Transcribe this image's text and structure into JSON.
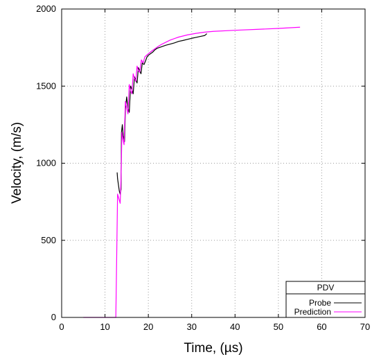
{
  "chart_data": {
    "type": "line",
    "xlabel": "Time, (µs)",
    "ylabel": "Velocity, (m/s)",
    "xlim": [
      0,
      70
    ],
    "ylim": [
      0,
      2000
    ],
    "xticks": [
      0,
      10,
      20,
      30,
      40,
      50,
      60,
      70
    ],
    "yticks": [
      0,
      500,
      1000,
      1500,
      2000
    ],
    "grid": true,
    "legend": {
      "title": "PDV",
      "placement": "bottom-right"
    },
    "colors": {
      "probe": "#000000",
      "prediction": "#ff00ff"
    },
    "series": [
      {
        "name": "Probe",
        "color": "#000000",
        "x": [
          12.8,
          12.9,
          13.1,
          13.3,
          13.5,
          13.7,
          13.8,
          14.0,
          14.2,
          14.5,
          14.7,
          15.0,
          15.3,
          15.6,
          15.9,
          16.2,
          16.5,
          16.8,
          17.1,
          17.4,
          17.7,
          18.0,
          18.3,
          18.6,
          19.0,
          19.3,
          19.7,
          20.0,
          20.5,
          21.0,
          21.5,
          22.0,
          23.0,
          24.0,
          25.0,
          26.0,
          27.0,
          28.0,
          29.0,
          30.0,
          31.0,
          32.0,
          33.0,
          33.5
        ],
        "y": [
          940,
          900,
          860,
          820,
          800,
          830,
          1200,
          1250,
          1180,
          1140,
          1350,
          1430,
          1360,
          1330,
          1500,
          1480,
          1450,
          1560,
          1540,
          1520,
          1620,
          1600,
          1580,
          1650,
          1640,
          1660,
          1690,
          1700,
          1710,
          1720,
          1735,
          1745,
          1755,
          1765,
          1772,
          1780,
          1790,
          1796,
          1803,
          1810,
          1816,
          1822,
          1828,
          1840
        ]
      },
      {
        "name": "Prediction",
        "color": "#ff00ff",
        "x": [
          5,
          12.5,
          12.7,
          12.9,
          13.1,
          13.3,
          13.5,
          13.7,
          13.9,
          14.1,
          14.4,
          14.7,
          15.0,
          15.3,
          15.6,
          15.9,
          16.2,
          16.5,
          16.8,
          17.1,
          17.4,
          17.7,
          18.0,
          18.4,
          18.8,
          19.2,
          19.6,
          20.0,
          21.0,
          22.0,
          23.0,
          24.0,
          25.0,
          27.0,
          29.0,
          31.0,
          33.0,
          35.0,
          40.0,
          45.0,
          50.0,
          55.0
        ],
        "y": [
          0,
          0,
          400,
          800,
          780,
          760,
          740,
          900,
          1200,
          1160,
          1120,
          1400,
          1360,
          1320,
          1510,
          1470,
          1450,
          1580,
          1550,
          1530,
          1630,
          1600,
          1590,
          1670,
          1650,
          1690,
          1700,
          1710,
          1732,
          1752,
          1770,
          1784,
          1798,
          1818,
          1832,
          1842,
          1850,
          1855,
          1862,
          1868,
          1874,
          1882
        ]
      }
    ]
  }
}
